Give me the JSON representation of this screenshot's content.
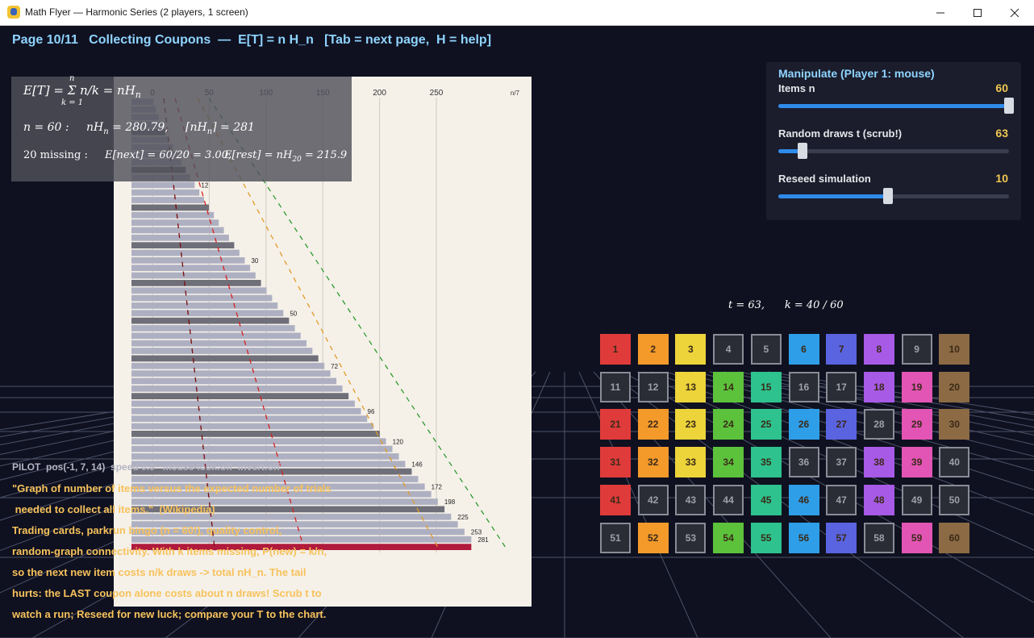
{
  "window": {
    "title": "Math Flyer — Harmonic Series (2 players, 1 screen)",
    "min_icon": "minimize-icon",
    "max_icon": "maximize-icon",
    "close_icon": "close-icon"
  },
  "header": {
    "text": "Page 10/11   Collecting Coupons  —  E[T] = n H_n   [Tab = next page,  H = help]"
  },
  "formulas": {
    "line1": "E[T] = Σ n/k = nH",
    "sum_top": "n",
    "sum_bottom": "k = 1",
    "line2_a": "n = 60 :",
    "line2_b": "nH",
    "line2_b_val": " = 280.79,",
    "line2_c": "⌈nH",
    "line2_c_val": "⌉ = 281",
    "line3_a": "20 missing :",
    "line3_b": "E[next] = 60/20 = 3.00,",
    "line3_c": "E[rest] = nH",
    "line3_c_sub": "20",
    "line3_c_val": " = 215.9"
  },
  "manipulate": {
    "title": "Manipulate  (Player 1: mouse)",
    "sliders": [
      {
        "label": "Items  n",
        "value": "60",
        "fraction": 1.0
      },
      {
        "label": "Random draws  t  (scrub!)",
        "value": "63",
        "fraction": 0.105
      },
      {
        "label": "Reseed simulation",
        "value": "10",
        "fraction": 0.475
      }
    ]
  },
  "status": {
    "tk": "t = 63,      k = 40 / 60"
  },
  "coupons": {
    "items": [
      {
        "n": "1",
        "c": "red"
      },
      {
        "n": "2",
        "c": "orange"
      },
      {
        "n": "3",
        "c": "yellow"
      },
      {
        "n": "4",
        "c": "none"
      },
      {
        "n": "5",
        "c": "none"
      },
      {
        "n": "6",
        "c": "sky"
      },
      {
        "n": "7",
        "c": "indigo"
      },
      {
        "n": "8",
        "c": "violet"
      },
      {
        "n": "9",
        "c": "none"
      },
      {
        "n": "10",
        "c": "brown"
      },
      {
        "n": "11",
        "c": "none"
      },
      {
        "n": "12",
        "c": "none"
      },
      {
        "n": "13",
        "c": "yellow"
      },
      {
        "n": "14",
        "c": "green"
      },
      {
        "n": "15",
        "c": "teal"
      },
      {
        "n": "16",
        "c": "none"
      },
      {
        "n": "17",
        "c": "none"
      },
      {
        "n": "18",
        "c": "violet"
      },
      {
        "n": "19",
        "c": "pink"
      },
      {
        "n": "20",
        "c": "brown"
      },
      {
        "n": "21",
        "c": "red"
      },
      {
        "n": "22",
        "c": "orange"
      },
      {
        "n": "23",
        "c": "yellow"
      },
      {
        "n": "24",
        "c": "green"
      },
      {
        "n": "25",
        "c": "teal"
      },
      {
        "n": "26",
        "c": "sky"
      },
      {
        "n": "27",
        "c": "indigo"
      },
      {
        "n": "28",
        "c": "none"
      },
      {
        "n": "29",
        "c": "pink"
      },
      {
        "n": "30",
        "c": "brown"
      },
      {
        "n": "31",
        "c": "red"
      },
      {
        "n": "32",
        "c": "orange"
      },
      {
        "n": "33",
        "c": "yellow"
      },
      {
        "n": "34",
        "c": "green"
      },
      {
        "n": "35",
        "c": "teal"
      },
      {
        "n": "36",
        "c": "none"
      },
      {
        "n": "37",
        "c": "none"
      },
      {
        "n": "38",
        "c": "violet"
      },
      {
        "n": "39",
        "c": "pink"
      },
      {
        "n": "40",
        "c": "none"
      },
      {
        "n": "41",
        "c": "red"
      },
      {
        "n": "42",
        "c": "none"
      },
      {
        "n": "43",
        "c": "none"
      },
      {
        "n": "44",
        "c": "none"
      },
      {
        "n": "45",
        "c": "teal"
      },
      {
        "n": "46",
        "c": "sky"
      },
      {
        "n": "47",
        "c": "none"
      },
      {
        "n": "48",
        "c": "violet"
      },
      {
        "n": "49",
        "c": "none"
      },
      {
        "n": "50",
        "c": "none"
      },
      {
        "n": "51",
        "c": "none"
      },
      {
        "n": "52",
        "c": "orange"
      },
      {
        "n": "53",
        "c": "none"
      },
      {
        "n": "54",
        "c": "green"
      },
      {
        "n": "55",
        "c": "teal"
      },
      {
        "n": "56",
        "c": "sky"
      },
      {
        "n": "57",
        "c": "indigo"
      },
      {
        "n": "58",
        "c": "none"
      },
      {
        "n": "59",
        "c": "pink"
      },
      {
        "n": "60",
        "c": "brown"
      }
    ],
    "colors": {
      "red": "#e03b3b",
      "orange": "#f39a2b",
      "yellow": "#ecd43a",
      "green": "#5cc23c",
      "teal": "#2ec28e",
      "sky": "#2f9ee8",
      "indigo": "#5a63e0",
      "violet": "#a75ae6",
      "pink": "#e255b4",
      "brown": "#8c6a44",
      "none": "#2b2d36"
    }
  },
  "pilot": {
    "text": "PILOT  pos(-1, 7, 14)  speed 0.0   mouse-look:off  invert:off"
  },
  "description": {
    "lines": [
      "\"Graph of number of items versus the expected number of trials",
      " needed to collect all items.\"  (Wikipedia)",
      "Trading cards, parkrun bingo (n = 60!), quality control,",
      "random-graph connectivity. With k items missing, P(new) = k/n,",
      "so the next new item costs n/k draws -> total nH_n. The tail",
      "hurts: the LAST coupon alone costs about n draws! Scrub t to",
      "watch a run; Reseed for new luck; compare your T to the chart."
    ]
  },
  "chart_data": {
    "type": "bar",
    "orientation": "horizontal",
    "title": "",
    "xlabel": "",
    "ylabel": "",
    "x_ticks": [
      "0",
      "50",
      "100",
      "150",
      "200",
      "250"
    ],
    "x_corner_label": "n/7",
    "n_items": 60,
    "values": [
      1,
      3.0,
      5.5,
      8.3,
      11.4,
      14.7,
      18.2,
      21.7,
      25.5,
      29.3,
      33.2,
      37.2,
      41.3,
      45.4,
      49.7,
      54.1,
      58.4,
      62.9,
      67.4,
      72.0,
      76.6,
      81.3,
      86.0,
      90.8,
      95.6,
      100.5,
      105.4,
      110.3,
      115.3,
      120.3,
      125.4,
      130.5,
      135.7,
      140.9,
      146.1,
      151.4,
      156.7,
      162.0,
      167.3,
      172.7,
      178.2,
      183.6,
      189.1,
      194.6,
      200.2,
      205.7,
      211.3,
      217.0,
      222.6,
      228.3,
      234.0,
      239.8,
      245.5,
      251.3,
      257.2,
      263.0,
      268.9,
      274.8,
      280.8,
      280.8
    ],
    "data_labels": [
      {
        "k": 12,
        "label": "12"
      },
      {
        "k": 22,
        "label": "30"
      },
      {
        "k": 29,
        "label": "50"
      },
      {
        "k": 36,
        "label": "72"
      },
      {
        "k": 42,
        "label": "96"
      },
      {
        "k": 46,
        "label": "120"
      },
      {
        "k": 49,
        "label": "146"
      },
      {
        "k": 52,
        "label": "172"
      },
      {
        "k": 54,
        "label": "198"
      },
      {
        "k": 56,
        "label": "225"
      },
      {
        "k": 58,
        "label": "253"
      },
      {
        "k": 59,
        "label": "281"
      }
    ],
    "highlight_color": "#b01a3c",
    "dashed_lines": [
      {
        "color": "#2e9a2e",
        "x_top": 50,
        "x_bottom": 313
      },
      {
        "color": "#e39a28",
        "x_top": 40,
        "x_bottom": 253
      },
      {
        "color": "#d62020",
        "x_top": 20,
        "x_bottom": 134
      },
      {
        "color": "#7a0a0a",
        "x_top": 10,
        "x_bottom": 55
      }
    ]
  }
}
